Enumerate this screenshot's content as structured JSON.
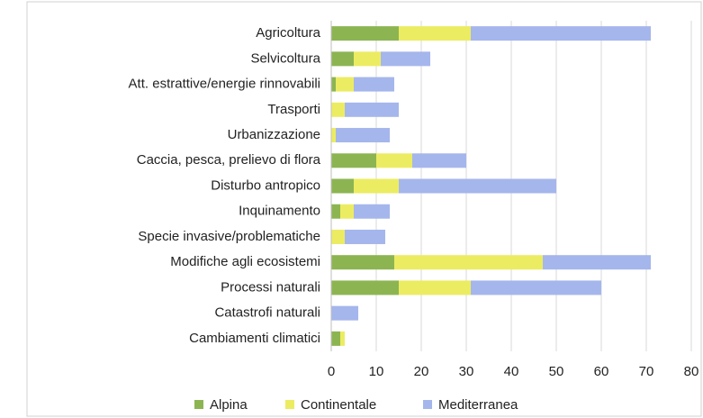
{
  "chart_data": {
    "type": "stacked-bar-horizontal",
    "categories": [
      "Agricoltura",
      "Selvicoltura",
      "Att. estrattive/energie rinnovabili",
      "Trasporti",
      "Urbanizzazione",
      "Caccia, pesca, prelievo di flora",
      "Disturbo antropico",
      "Inquinamento",
      "Specie invasive/problematiche",
      "Modifiche agli ecosistemi",
      "Processi naturali",
      "Catastrofi naturali",
      "Cambiamenti climatici"
    ],
    "series": [
      {
        "name": "Alpina",
        "color": "#8cb552",
        "values": [
          15,
          5,
          1,
          0,
          0,
          10,
          5,
          2,
          0,
          14,
          15,
          0,
          2
        ]
      },
      {
        "name": "Continentale",
        "color": "#ecec62",
        "values": [
          16,
          6,
          4,
          3,
          1,
          8,
          10,
          3,
          3,
          33,
          16,
          0,
          1
        ]
      },
      {
        "name": "Mediterranea",
        "color": "#a5b6ec",
        "values": [
          40,
          11,
          9,
          12,
          12,
          12,
          35,
          8,
          9,
          24,
          29,
          6,
          0
        ]
      }
    ],
    "xlim": [
      0,
      80
    ],
    "xticks": [
      0,
      10,
      20,
      30,
      40,
      50,
      60,
      70,
      80
    ],
    "grid": true,
    "legend": "bottom"
  }
}
